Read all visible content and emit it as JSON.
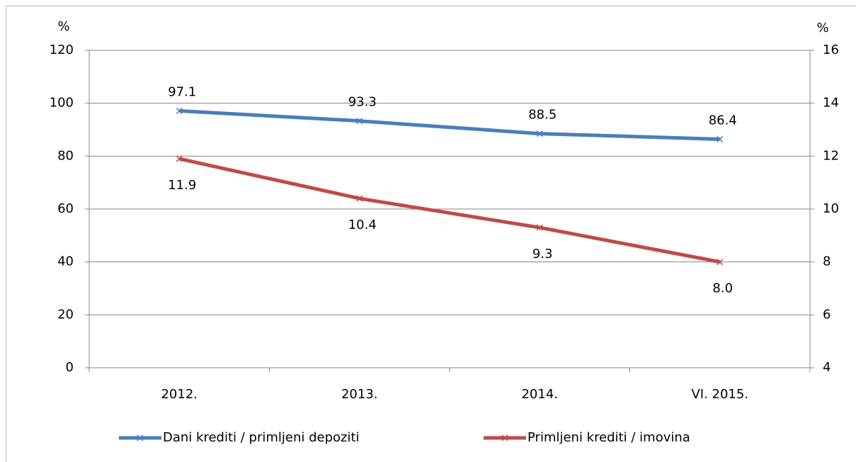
{
  "chart_data": {
    "type": "line",
    "y_label": "%",
    "y2_label": "%",
    "categories": [
      "2012.",
      "2013.",
      "2014.",
      "VI. 2015."
    ],
    "series": [
      {
        "name": "Dani krediti / primljeni depoziti",
        "color": "#4a7ebb",
        "values": [
          97.1,
          93.3,
          88.5,
          86.4
        ],
        "value_labels": [
          "97.1",
          "93.3",
          "88.5",
          "86.4"
        ],
        "label_position": "above"
      },
      {
        "name": "Primljeni krediti / imovina",
        "color": "#be4b48",
        "axis": "y2",
        "values": [
          11.9,
          10.4,
          9.3,
          8.0
        ],
        "value_labels": [
          "11.9",
          "10.4",
          "9.3",
          "8.0"
        ],
        "label_position": "below"
      }
    ],
    "ylim": [
      0,
      120
    ],
    "yticks": [
      0,
      20,
      40,
      60,
      80,
      100,
      120
    ],
    "y2lim": [
      4,
      16
    ],
    "y2ticks": [
      4,
      6,
      8,
      10,
      12,
      14,
      16
    ],
    "grid": true,
    "legend": "bottom"
  }
}
